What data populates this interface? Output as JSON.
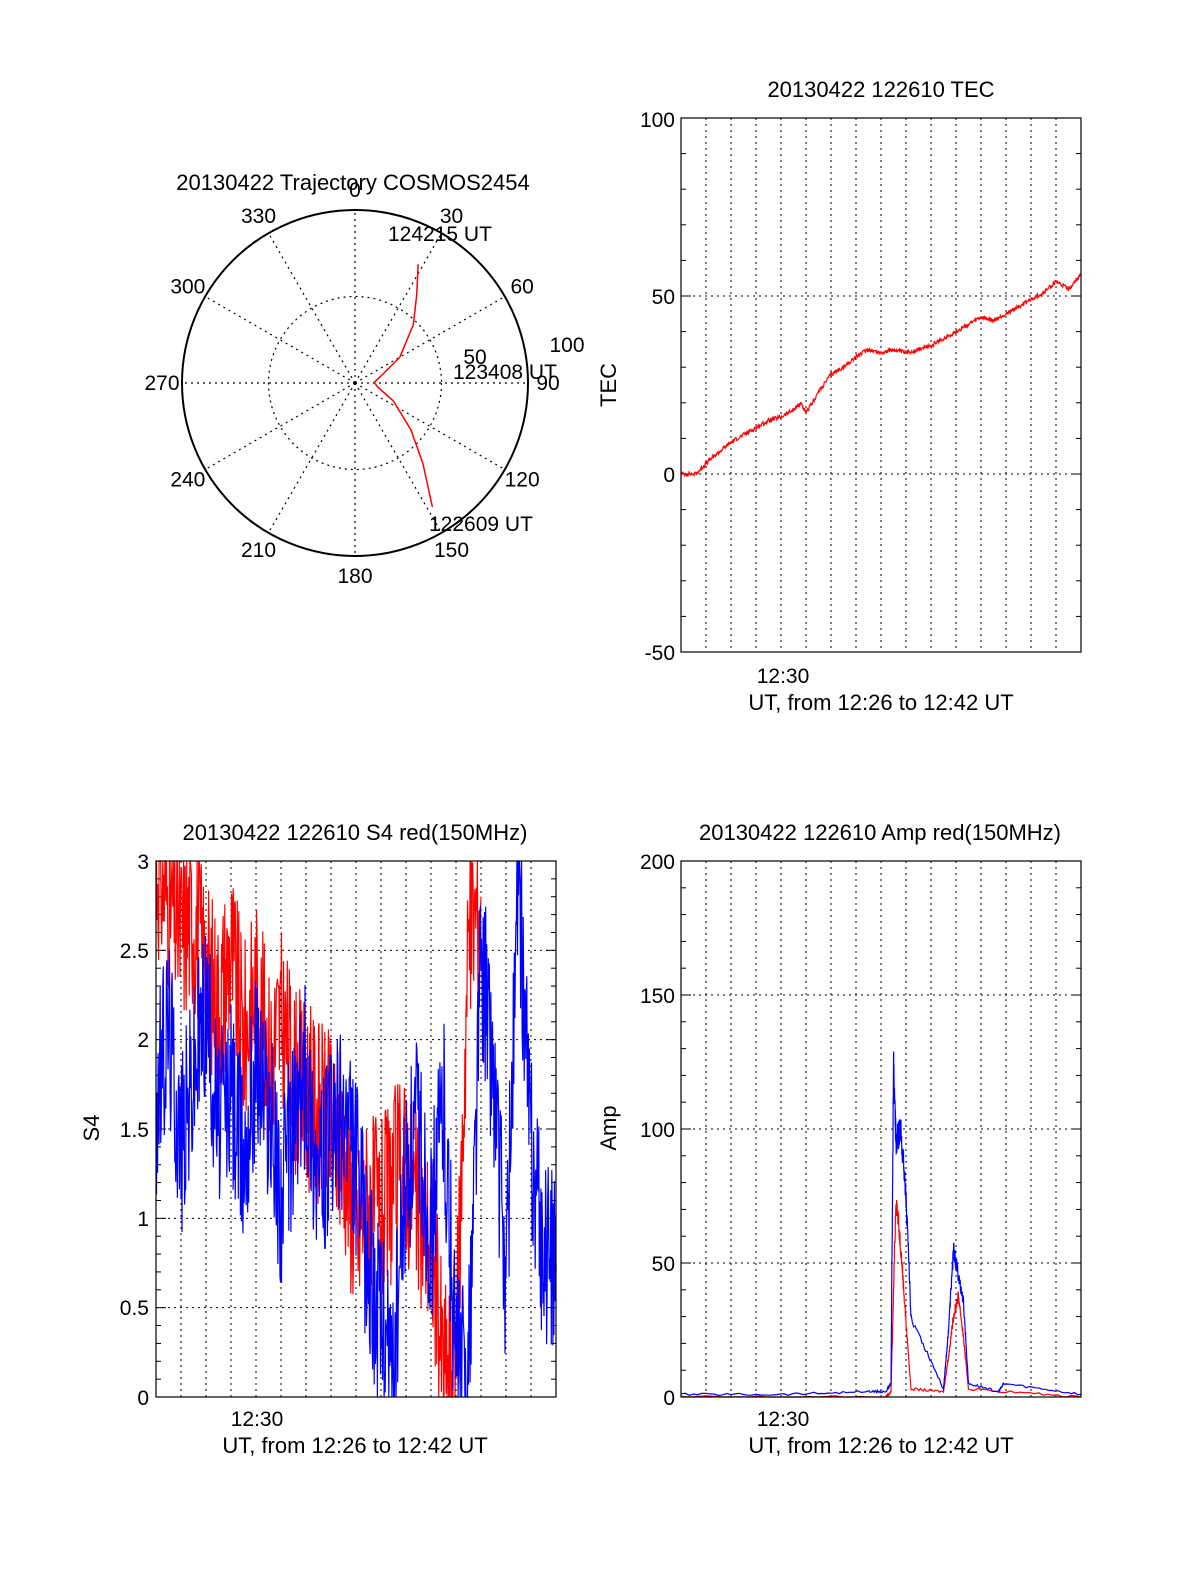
{
  "colors": {
    "red": "#ff0000",
    "blue": "#0000ff",
    "axis": "#000000",
    "grid": "#000000"
  },
  "chart_data": [
    {
      "type": "polar",
      "title": "20130422 Trajectory COSMOS2454",
      "azimuth_labels": [
        "0",
        "30",
        "60",
        "90",
        "120",
        "150",
        "180",
        "210",
        "240",
        "270",
        "300",
        "330"
      ],
      "elevation_ring_labels": [
        "50",
        "100"
      ],
      "annotations": [
        "124215 UT",
        "123408 UT",
        "122609 UT"
      ],
      "series": [
        {
          "color": "red",
          "points_az_el": [
            [
              148,
              14
            ],
            [
              140,
              35
            ],
            [
              130,
              52
            ],
            [
              115,
              68
            ],
            [
              100,
              78
            ],
            [
              88,
              80
            ],
            [
              75,
              76
            ],
            [
              60,
              63
            ],
            [
              45,
              47
            ],
            [
              35,
              34
            ],
            [
              28,
              20
            ]
          ]
        }
      ],
      "grid": true
    },
    {
      "type": "line",
      "title": "20130422 122610 TEC",
      "ylabel": "TEC",
      "xlabel": "UT, from 12:26 to 12:42 UT",
      "xtick_labels": [
        "12:30"
      ],
      "ylim": [
        -50,
        100
      ],
      "yticks": [
        "100",
        "50",
        "0",
        "-50"
      ],
      "grid": true,
      "series": [
        {
          "color": "red",
          "x_minutes_after_1226": [
            0,
            0.6,
            1,
            1.5,
            2,
            2.5,
            3,
            3.5,
            4,
            4.5,
            4.8,
            5,
            5.5,
            6,
            6.5,
            7,
            7.5,
            8,
            8.5,
            9,
            9.5,
            10,
            10.5,
            11,
            11.5,
            12,
            12.5,
            13,
            13.5,
            14,
            14.5,
            15,
            15.5,
            16
          ],
          "y": [
            0,
            0,
            3,
            6,
            9,
            11,
            13,
            15,
            16,
            18,
            20,
            17,
            23,
            28,
            30,
            33,
            35,
            34,
            35,
            34,
            35,
            36,
            38,
            40,
            42,
            44,
            43,
            45,
            47,
            49,
            51,
            54,
            52,
            56
          ]
        }
      ]
    },
    {
      "type": "line",
      "title": "20130422 122610 S4 red(150MHz)",
      "ylabel": "S4",
      "xlabel": "UT, from 12:26 to 12:42 UT",
      "xtick_labels": [
        "12:30"
      ],
      "ylim": [
        0,
        3
      ],
      "yticks": [
        "3",
        "2.5",
        "2",
        "1.5",
        "1",
        "0.5",
        "0"
      ],
      "grid": true,
      "series": [
        {
          "color": "red",
          "x_minutes_after_1226": [
            0,
            0.5,
            1,
            1.5,
            2,
            2.5,
            3,
            3.5,
            4,
            4.5,
            5,
            5.5,
            6,
            6.5,
            7,
            7.5,
            8,
            8.5,
            9,
            9.5,
            10,
            10.5,
            11,
            11.5,
            12,
            12.5,
            13
          ],
          "y": [
            3,
            2.8,
            2.6,
            2.7,
            2.4,
            2.2,
            2.5,
            2.0,
            2.3,
            1.9,
            2.1,
            1.8,
            1.7,
            1.6,
            1.5,
            1.4,
            0.9,
            1.1,
            1.0,
            1.2,
            1.3,
            1.0,
            0.9,
            0.15,
            0.2,
            2.6,
            2.8
          ]
        },
        {
          "color": "blue",
          "x_minutes_after_1226": [
            0,
            0.5,
            1,
            1.5,
            2,
            2.5,
            3,
            3.5,
            4,
            4.5,
            5,
            5.5,
            6,
            6.5,
            7,
            7.5,
            8,
            8.5,
            9,
            9.5,
            10,
            10.5,
            11,
            11.5,
            12,
            12.5,
            13,
            13.5,
            14,
            14.5,
            15,
            15.5,
            16
          ],
          "y": [
            1.6,
            2.1,
            1.4,
            1.8,
            2.2,
            1.5,
            1.7,
            1.3,
            1.9,
            1.6,
            1.1,
            1.5,
            1.8,
            1.2,
            1.4,
            1.6,
            1.3,
            0.7,
            0.4,
            0.15,
            1.2,
            1.5,
            0.9,
            1.7,
            0.2,
            0.15,
            2.5,
            1.8,
            0.6,
            2.9,
            1.4,
            0.8,
            0.7
          ]
        }
      ]
    },
    {
      "type": "line",
      "title": "20130422 122610 Amp red(150MHz)",
      "ylabel": "Amp",
      "xlabel": "UT, from 12:26 to 12:42 UT",
      "xtick_labels": [
        "12:30"
      ],
      "ylim": [
        0,
        200
      ],
      "yticks": [
        "200",
        "150",
        "100",
        "50",
        "0"
      ],
      "grid": true,
      "series": [
        {
          "color": "red",
          "x_minutes_after_1226": [
            0,
            8.2,
            8.4,
            8.6,
            8.8,
            9.0,
            9.2,
            10.5,
            10.7,
            10.9,
            11.1,
            11.3,
            11.5,
            16
          ],
          "y": [
            0,
            0,
            2,
            75,
            55,
            28,
            3,
            2,
            15,
            30,
            38,
            22,
            3,
            0
          ]
        },
        {
          "color": "blue",
          "x_minutes_after_1226": [
            0,
            4,
            7.5,
            8.2,
            8.4,
            8.5,
            8.6,
            8.8,
            9.0,
            9.2,
            10.5,
            10.7,
            10.9,
            11.1,
            11.3,
            11.5,
            12.7,
            12.9,
            16
          ],
          "y": [
            1,
            1,
            2,
            2,
            5,
            123,
            95,
            100,
            75,
            30,
            3,
            25,
            55,
            45,
            35,
            5,
            2,
            5,
            1
          ]
        }
      ]
    }
  ]
}
